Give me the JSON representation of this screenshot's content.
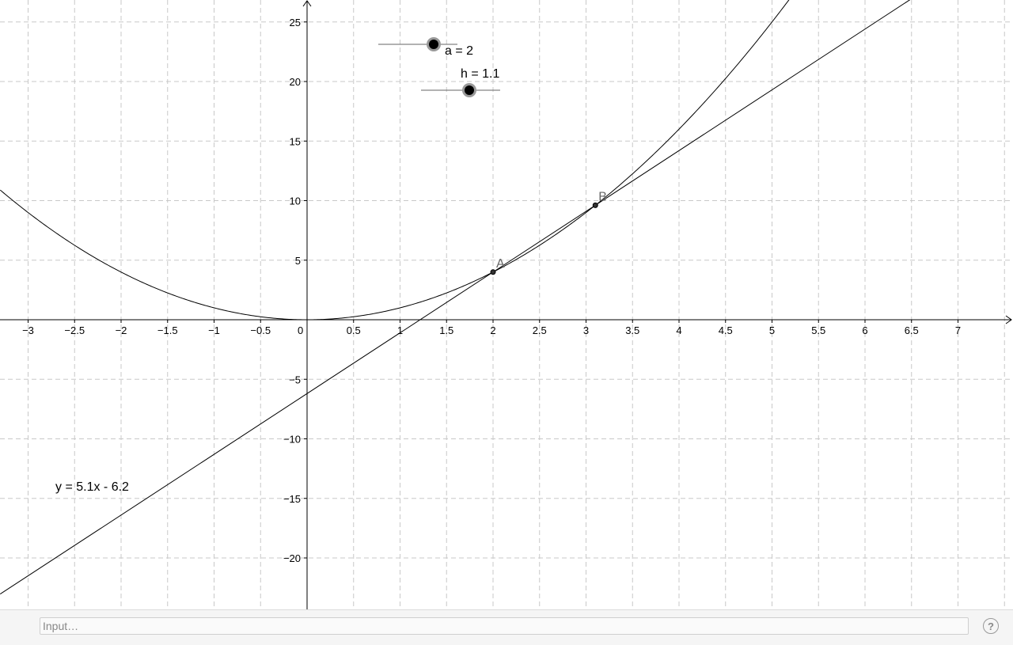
{
  "graph": {
    "x_range": [
      -3.3,
      7.6
    ],
    "y_range": [
      -24.2,
      26.5
    ],
    "x_tick_step": 0.5,
    "y_tick_step": 5,
    "x_tick_labels": [
      "−3",
      "−2.5",
      "−2",
      "−1.5",
      "−1",
      "−0.5",
      "0",
      "0.5",
      "1",
      "1.5",
      "2",
      "2.5",
      "3",
      "3.5",
      "4",
      "4.5",
      "5",
      "5.5",
      "6",
      "6.5",
      "7"
    ],
    "y_tick_labels": [
      "−20",
      "−15",
      "−10",
      "−5",
      "5",
      "10",
      "15",
      "20",
      "25"
    ],
    "grid": true,
    "grid_color": "#c8c8c8",
    "curve": {
      "function": "y = x^2",
      "a": 2
    },
    "tangent_line": {
      "slope": 5.1,
      "intercept": -6.2
    },
    "points": [
      {
        "label": "A",
        "x": 2,
        "y": 4
      },
      {
        "label": "B",
        "x": 3.1,
        "y": 9.61
      }
    ]
  },
  "sliders": {
    "a": {
      "label": "a = 2",
      "value": 2
    },
    "h": {
      "label": "h = 1.1",
      "value": 1.1
    }
  },
  "equation_label": "y = 5.1x - 6.2",
  "input_bar": {
    "placeholder": "Input…",
    "help_label": "?"
  }
}
